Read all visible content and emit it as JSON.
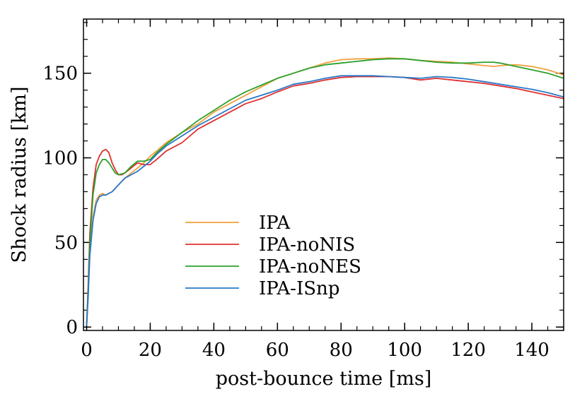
{
  "chart_data": {
    "type": "line",
    "xlabel": "post-bounce time [ms]",
    "ylabel": "Shock radius [km]",
    "xlim": [
      -1,
      150
    ],
    "ylim": [
      -2,
      182
    ],
    "x_ticks": [
      0,
      20,
      40,
      60,
      80,
      100,
      120,
      140
    ],
    "x_tick_labels": [
      "0",
      "20",
      "40",
      "60",
      "80",
      "100",
      "120",
      "140"
    ],
    "y_ticks": [
      0,
      50,
      100,
      150
    ],
    "y_tick_labels": [
      "0",
      "50",
      "100",
      "150"
    ],
    "x_minor_step": 5,
    "y_minor_step": 10,
    "grid": false,
    "legend_position": "center-left",
    "series": [
      {
        "name": "IPA",
        "color": "#f2a03d",
        "points": [
          [
            0,
            1
          ],
          [
            0.5,
            20
          ],
          [
            1,
            45
          ],
          [
            2,
            65
          ],
          [
            3,
            75
          ],
          [
            4,
            78
          ],
          [
            5,
            79
          ],
          [
            6,
            78
          ],
          [
            8,
            80
          ],
          [
            10,
            84
          ],
          [
            12,
            88
          ],
          [
            14,
            91
          ],
          [
            16,
            94
          ],
          [
            18,
            97
          ],
          [
            20,
            101
          ],
          [
            22,
            104
          ],
          [
            25,
            109
          ],
          [
            30,
            115
          ],
          [
            35,
            120
          ],
          [
            40,
            127
          ],
          [
            45,
            132
          ],
          [
            50,
            137
          ],
          [
            55,
            142
          ],
          [
            60,
            147
          ],
          [
            65,
            150
          ],
          [
            70,
            153
          ],
          [
            75,
            156
          ],
          [
            80,
            158
          ],
          [
            85,
            158.5
          ],
          [
            90,
            158.5
          ],
          [
            95,
            159
          ],
          [
            100,
            158.5
          ],
          [
            105,
            157.5
          ],
          [
            110,
            157
          ],
          [
            115,
            156.5
          ],
          [
            120,
            155.5
          ],
          [
            125,
            154.5
          ],
          [
            128,
            154
          ],
          [
            130,
            154.5
          ],
          [
            135,
            155
          ],
          [
            140,
            154
          ],
          [
            145,
            152
          ],
          [
            150,
            149
          ]
        ]
      },
      {
        "name": "IPA-noNIS",
        "color": "#e03030",
        "points": [
          [
            0,
            1
          ],
          [
            0.5,
            25
          ],
          [
            1,
            55
          ],
          [
            2,
            82
          ],
          [
            3,
            96
          ],
          [
            4,
            101
          ],
          [
            5,
            104
          ],
          [
            6,
            105
          ],
          [
            7,
            103
          ],
          [
            8,
            97
          ],
          [
            9,
            93
          ],
          [
            10,
            90
          ],
          [
            11,
            90
          ],
          [
            12,
            91
          ],
          [
            14,
            94
          ],
          [
            16,
            97
          ],
          [
            18,
            96
          ],
          [
            20,
            96
          ],
          [
            22,
            99
          ],
          [
            25,
            104
          ],
          [
            30,
            109
          ],
          [
            35,
            117
          ],
          [
            40,
            122
          ],
          [
            45,
            127
          ],
          [
            50,
            132
          ],
          [
            55,
            135
          ],
          [
            60,
            139
          ],
          [
            65,
            142.5
          ],
          [
            70,
            144
          ],
          [
            75,
            146
          ],
          [
            80,
            147.5
          ],
          [
            85,
            148
          ],
          [
            90,
            148
          ],
          [
            95,
            148
          ],
          [
            100,
            147.5
          ],
          [
            105,
            146
          ],
          [
            110,
            147
          ],
          [
            115,
            146
          ],
          [
            120,
            145
          ],
          [
            125,
            144
          ],
          [
            130,
            142.5
          ],
          [
            135,
            141
          ],
          [
            140,
            139
          ],
          [
            145,
            137
          ],
          [
            150,
            135
          ]
        ]
      },
      {
        "name": "IPA-noNES",
        "color": "#2ca02c",
        "points": [
          [
            0,
            1
          ],
          [
            0.5,
            22
          ],
          [
            1,
            50
          ],
          [
            2,
            78
          ],
          [
            3,
            91
          ],
          [
            4,
            96
          ],
          [
            5,
            99
          ],
          [
            6,
            99
          ],
          [
            7,
            97
          ],
          [
            8,
            94
          ],
          [
            9,
            91
          ],
          [
            10,
            90
          ],
          [
            12,
            91
          ],
          [
            14,
            95
          ],
          [
            16,
            98
          ],
          [
            18,
            98
          ],
          [
            20,
            99
          ],
          [
            22,
            103
          ],
          [
            25,
            108
          ],
          [
            30,
            115
          ],
          [
            35,
            122
          ],
          [
            40,
            128
          ],
          [
            45,
            134
          ],
          [
            50,
            139
          ],
          [
            55,
            143
          ],
          [
            60,
            147
          ],
          [
            65,
            150
          ],
          [
            70,
            153
          ],
          [
            75,
            155
          ],
          [
            80,
            156
          ],
          [
            85,
            157
          ],
          [
            90,
            158
          ],
          [
            95,
            158.5
          ],
          [
            100,
            158.5
          ],
          [
            105,
            157.5
          ],
          [
            110,
            156.5
          ],
          [
            115,
            156
          ],
          [
            120,
            156
          ],
          [
            125,
            156.5
          ],
          [
            128,
            156.5
          ],
          [
            130,
            156
          ],
          [
            135,
            154
          ],
          [
            140,
            152
          ],
          [
            145,
            150
          ],
          [
            150,
            147
          ]
        ]
      },
      {
        "name": "IPA-ISnp",
        "color": "#2878c8",
        "points": [
          [
            0,
            1
          ],
          [
            0.5,
            18
          ],
          [
            1,
            42
          ],
          [
            2,
            63
          ],
          [
            3,
            73
          ],
          [
            4,
            77
          ],
          [
            5,
            78
          ],
          [
            6,
            78
          ],
          [
            8,
            80
          ],
          [
            10,
            84
          ],
          [
            12,
            88
          ],
          [
            14,
            90
          ],
          [
            16,
            92
          ],
          [
            18,
            95
          ],
          [
            20,
            98
          ],
          [
            22,
            102
          ],
          [
            25,
            107
          ],
          [
            30,
            113
          ],
          [
            35,
            119
          ],
          [
            40,
            124
          ],
          [
            45,
            129
          ],
          [
            50,
            134
          ],
          [
            55,
            137
          ],
          [
            60,
            140
          ],
          [
            65,
            143.5
          ],
          [
            70,
            145
          ],
          [
            75,
            147
          ],
          [
            80,
            148.5
          ],
          [
            85,
            148.5
          ],
          [
            90,
            148.5
          ],
          [
            95,
            148
          ],
          [
            100,
            147.5
          ],
          [
            105,
            147
          ],
          [
            110,
            148
          ],
          [
            115,
            147.5
          ],
          [
            120,
            146.5
          ],
          [
            125,
            145
          ],
          [
            130,
            143.5
          ],
          [
            135,
            142
          ],
          [
            140,
            140.5
          ],
          [
            145,
            138.5
          ],
          [
            150,
            136
          ]
        ]
      }
    ]
  }
}
